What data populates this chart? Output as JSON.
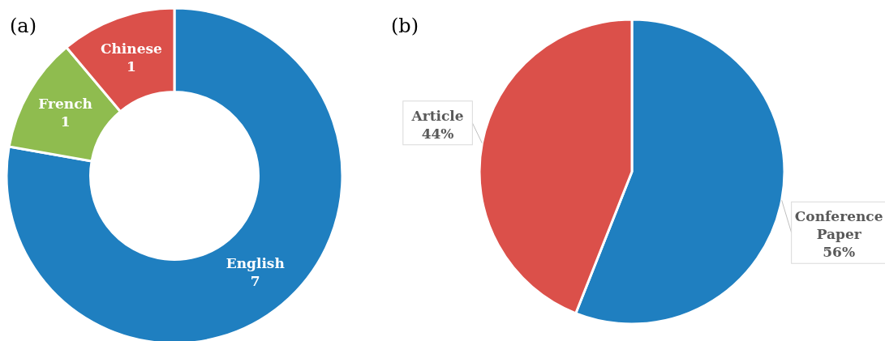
{
  "chart_data": [
    {
      "type": "donut",
      "title": "(a)",
      "categories": [
        "English",
        "French",
        "Chinese"
      ],
      "values": [
        7,
        1,
        1
      ],
      "colors": [
        "#1f7fc0",
        "#8fbc4f",
        "#db504a"
      ],
      "data_labels": true
    },
    {
      "type": "pie",
      "title": "(b)",
      "categories": [
        "Conference Paper",
        "Article"
      ],
      "values": [
        56,
        44
      ],
      "colors": [
        "#1f7fc0",
        "#db504a"
      ],
      "value_labels": [
        "56%",
        "44%"
      ]
    }
  ]
}
